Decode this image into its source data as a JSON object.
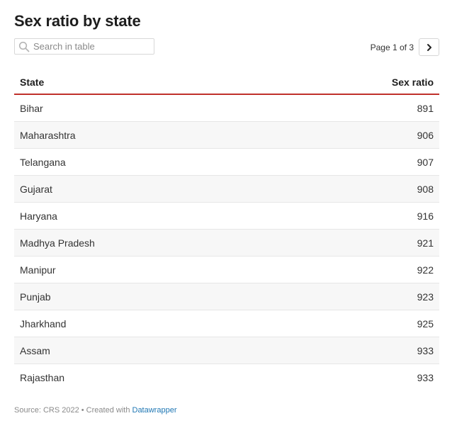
{
  "title": "Sex ratio by state",
  "search": {
    "placeholder": "Search in table",
    "value": ""
  },
  "pagination": {
    "label": "Page 1 of 3"
  },
  "chart_data": {
    "type": "table",
    "columns": [
      "State",
      "Sex ratio"
    ],
    "rows": [
      {
        "state": "Bihar",
        "sex_ratio": "891"
      },
      {
        "state": "Maharashtra",
        "sex_ratio": "906"
      },
      {
        "state": "Telangana",
        "sex_ratio": "907"
      },
      {
        "state": "Gujarat",
        "sex_ratio": "908"
      },
      {
        "state": "Haryana",
        "sex_ratio": "916"
      },
      {
        "state": "Madhya Pradesh",
        "sex_ratio": "921"
      },
      {
        "state": "Manipur",
        "sex_ratio": "922"
      },
      {
        "state": "Punjab",
        "sex_ratio": "923"
      },
      {
        "state": "Jharkhand",
        "sex_ratio": "925"
      },
      {
        "state": "Assam",
        "sex_ratio": "933"
      },
      {
        "state": "Rajasthan",
        "sex_ratio": "933"
      }
    ]
  },
  "footer": {
    "source": "Source: CRS 2022 • Created with ",
    "link": "Datawrapper"
  },
  "colors": {
    "header_rule": "#c0302b",
    "row_alt": "#f7f7f7",
    "link": "#1f77b4"
  },
  "icons": {
    "search": "search-icon",
    "next": "chevron-right-icon"
  }
}
